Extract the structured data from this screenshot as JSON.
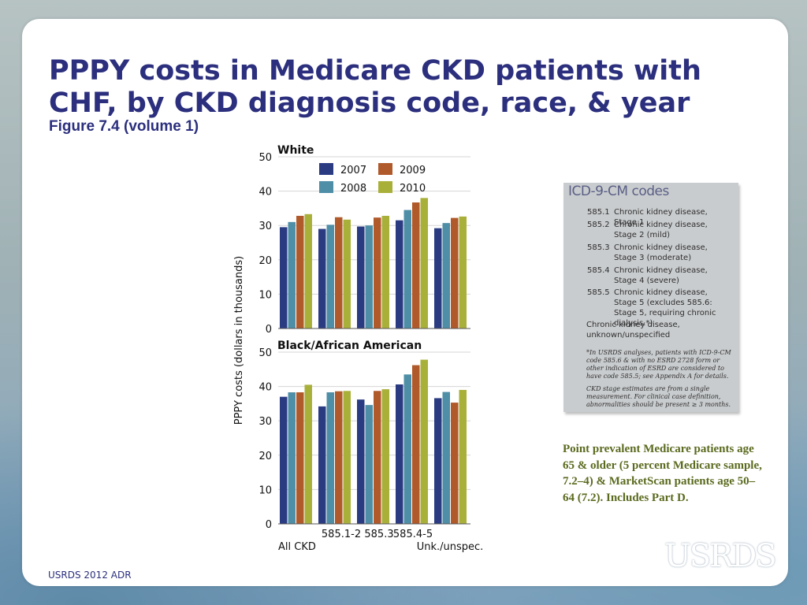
{
  "slide": {
    "title": "PPPY costs in Medicare CKD patients with CHF, by CKD diagnosis code, race, & year",
    "subtitle": "Figure 7.4 (volume 1)",
    "footer": "USRDS 2012 ADR",
    "logo": "USRDS"
  },
  "chart_data": {
    "type": "bar",
    "ylabel": "PPPY costs (dollars in thousands)",
    "ylim": [
      0,
      50
    ],
    "yticks": [
      "0",
      "10",
      "20",
      "30",
      "40",
      "50"
    ],
    "categories": [
      "All CKD",
      "585.1-2",
      "585.3",
      "585.4-5",
      "Unk./unspec."
    ],
    "legend": [
      "2007",
      "2008",
      "2009",
      "2010"
    ],
    "colors": [
      "#2a3b82",
      "#4e8ea6",
      "#b0592a",
      "#a9b03a"
    ],
    "panels": [
      {
        "title": "White",
        "series": [
          {
            "name": "2007",
            "values": [
              29.5,
              29.0,
              29.7,
              31.5,
              29.2
            ]
          },
          {
            "name": "2008",
            "values": [
              31.0,
              30.2,
              30.0,
              34.5,
              30.7
            ]
          },
          {
            "name": "2009",
            "values": [
              32.8,
              32.4,
              32.3,
              36.7,
              32.2
            ]
          },
          {
            "name": "2010",
            "values": [
              33.3,
              31.7,
              32.8,
              38.0,
              32.6
            ]
          }
        ]
      },
      {
        "title": "Black/African American",
        "series": [
          {
            "name": "2007",
            "values": [
              37.0,
              34.2,
              36.2,
              40.6,
              36.6
            ]
          },
          {
            "name": "2008",
            "values": [
              38.3,
              38.3,
              34.6,
              43.5,
              38.4
            ]
          },
          {
            "name": "2009",
            "values": [
              38.3,
              38.6,
              38.7,
              46.2,
              35.3
            ]
          },
          {
            "name": "2010",
            "values": [
              40.5,
              38.7,
              39.2,
              47.8,
              39.0
            ]
          }
        ]
      }
    ]
  },
  "icd_box": {
    "title": "ICD-9-CM codes",
    "rows": [
      {
        "code": "585.1",
        "desc": "Chronic kidney disease, Stage 1"
      },
      {
        "code": "585.2",
        "desc": "Chronic kidney disease, Stage 2 (mild)"
      },
      {
        "code": "585.3",
        "desc": "Chronic kidney disease, Stage 3 (moderate)"
      },
      {
        "code": "585.4",
        "desc": "Chronic kidney disease, Stage 4 (severe)"
      },
      {
        "code": "585.5",
        "desc": "Chronic kidney disease, Stage 5 (excludes 585.6: Stage 5, requiring chronic dialysis.*)"
      }
    ],
    "unknown": "Chronic kidney disease, unknown/unspecified",
    "note1": "*In USRDS analyses, patients with ICD-9-CM code 585.6 & with no ESRD 2728 form or other indication of ESRD are considered to have code 585.5; see Appendix A for details.",
    "note2": "CKD stage estimates are from a single measurement. For clinical case definition, abnormalities should be present ≥ 3 months."
  },
  "note": "Point prevalent Medicare patients age 65 & older (5 percent Medicare sample, 7.2–4) & MarketScan patients age 50–64 (7.2). Includes Part D."
}
